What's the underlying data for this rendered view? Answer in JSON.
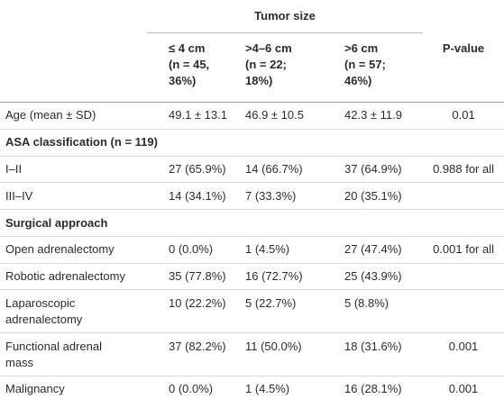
{
  "header": {
    "group": "Tumor size",
    "columns": [
      [
        "≤ 4 cm",
        "(n = 45,",
        "36%)"
      ],
      [
        ">4–6 cm",
        "(n = 22;",
        "18%)"
      ],
      [
        ">6 cm",
        "(n = 57;",
        "46%)"
      ],
      [
        "P-value"
      ]
    ]
  },
  "table": {
    "rows": [
      {
        "label": [
          "Age (mean ± SD)"
        ],
        "cells": [
          "49.1 ± 13.1",
          "46.9 ± 10.5",
          "42.3 ± 11.9",
          "0.01"
        ]
      },
      {
        "heading": "ASA classification (n = 119)"
      },
      {
        "label": [
          "I–II"
        ],
        "cells": [
          "27 (65.9%)",
          "14 (66.7%)",
          "37 (64.9%)",
          "0.988 for all"
        ]
      },
      {
        "label": [
          "III–IV"
        ],
        "cells": [
          "14 (34.1%)",
          "7 (33.3%)",
          "20 (35.1%)",
          ""
        ]
      },
      {
        "heading": "Surgical approach"
      },
      {
        "label": [
          "Open adrenalectomy"
        ],
        "cells": [
          "0 (0.0%)",
          "1 (4.5%)",
          "27 (47.4%)",
          "0.001 for all"
        ]
      },
      {
        "label": [
          "Robotic adrenalectomy"
        ],
        "cells": [
          "35 (77.8%)",
          "16 (72.7%)",
          "25 (43.9%)",
          ""
        ]
      },
      {
        "label": [
          "Laparoscopic",
          "adrenalectomy"
        ],
        "cells": [
          "10 (22.2%)",
          "5 (22.7%)",
          "5 (8.8%)",
          ""
        ]
      },
      {
        "label": [
          "Functional adrenal",
          "mass"
        ],
        "cells": [
          "37 (82.2%)",
          "11 (50.0%)",
          "18 (31.6%)",
          "0.001"
        ]
      },
      {
        "label": [
          "Malignancy"
        ],
        "cells": [
          "0 (0.0%)",
          "1 (4.5%)",
          "16 (28.1%)",
          "0.001"
        ]
      }
    ]
  }
}
